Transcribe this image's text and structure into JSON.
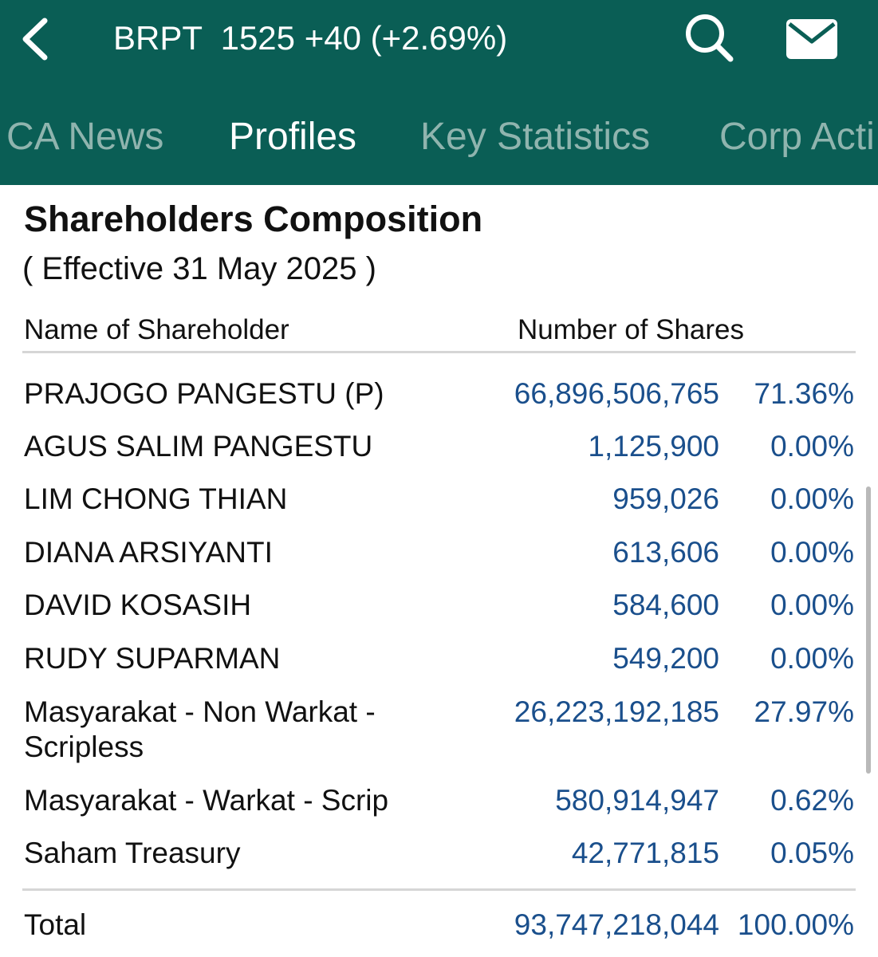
{
  "header": {
    "ticker_text": "BRPT  1525 +40 (+2.69%)",
    "back_icon": "chevron-left-icon",
    "search_icon": "search-icon",
    "mail_icon": "mail-icon",
    "bar_color": "#0a5e55"
  },
  "tabs": [
    {
      "label": "CA News",
      "active": false
    },
    {
      "label": "Profiles",
      "active": true
    },
    {
      "label": "Key Statistics",
      "active": false
    },
    {
      "label": "Corp Acti",
      "active": false
    }
  ],
  "section": {
    "title": "Shareholders Composition",
    "effective": "( Effective 31 May 2025 )"
  },
  "table": {
    "headers": {
      "name": "Name of Shareholder",
      "shares": "Number of Shares"
    },
    "rows": [
      {
        "name": "PRAJOGO PANGESTU (P)",
        "shares": "66,896,506,765",
        "pct": "71.36%"
      },
      {
        "name": "AGUS SALIM PANGESTU",
        "shares": "1,125,900",
        "pct": "0.00%"
      },
      {
        "name": "LIM CHONG THIAN",
        "shares": "959,026",
        "pct": "0.00%"
      },
      {
        "name": "DIANA ARSIYANTI",
        "shares": "613,606",
        "pct": "0.00%"
      },
      {
        "name": "DAVID KOSASIH",
        "shares": "584,600",
        "pct": "0.00%"
      },
      {
        "name": "RUDY SUPARMAN",
        "shares": "549,200",
        "pct": "0.00%"
      },
      {
        "name": "Masyarakat - Non Warkat - Scripless",
        "shares": "26,223,192,185",
        "pct": "27.97%"
      },
      {
        "name": "Masyarakat - Warkat - Scrip",
        "shares": "580,914,947",
        "pct": "0.62%"
      },
      {
        "name": "Saham Treasury",
        "shares": "42,771,815",
        "pct": "0.05%"
      }
    ],
    "total": {
      "name": "Total",
      "shares": "93,747,218,044",
      "pct": "100.00%"
    }
  }
}
